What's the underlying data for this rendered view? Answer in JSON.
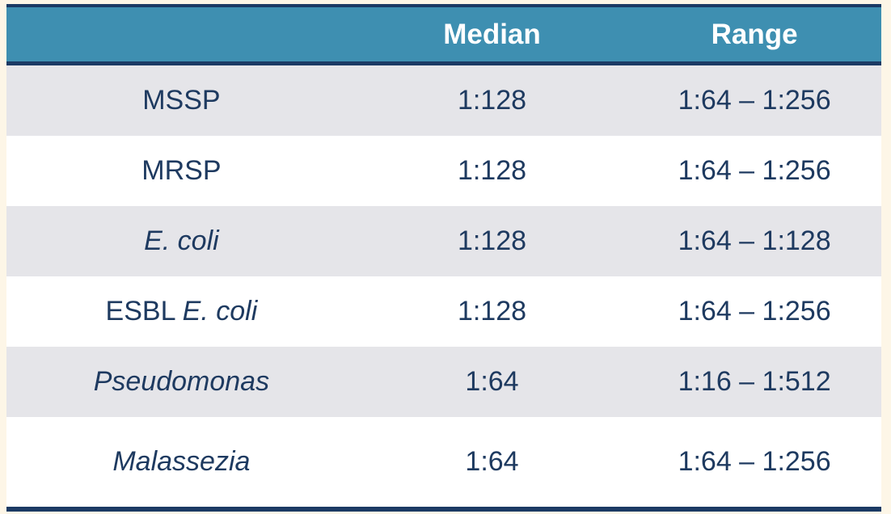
{
  "colors": {
    "page_bg": "#FDF6E7",
    "teal_header_bg": "#3E8FB1",
    "navy_border": "#1B3A64",
    "header_text": "#FFFFFF",
    "cell_text": "#1E3A60",
    "row_alt_bg": "#E5E5E9",
    "row_bg": "#FFFFFF"
  },
  "table": {
    "header": {
      "organism": "",
      "median": "Median",
      "range": "Range"
    },
    "rows": [
      {
        "organism_plain": "MSSP",
        "organism_italic": "",
        "median": "1:128",
        "range": "1:64 – 1:256"
      },
      {
        "organism_plain": "MRSP",
        "organism_italic": "",
        "median": "1:128",
        "range": "1:64 – 1:256"
      },
      {
        "organism_plain": "",
        "organism_italic": "E. coli",
        "median": "1:128",
        "range": "1:64 – 1:128"
      },
      {
        "organism_plain": "ESBL ",
        "organism_italic": "E. coli",
        "median": "1:128",
        "range": "1:64 – 1:256"
      },
      {
        "organism_plain": "",
        "organism_italic": "Pseudomonas",
        "median": "1:64",
        "range": "1:16 – 1:512"
      },
      {
        "organism_plain": "",
        "organism_italic": "Malassezia",
        "median": "1:64",
        "range": "1:64 – 1:256"
      }
    ]
  },
  "chart_data": {
    "type": "table",
    "title": "",
    "columns": [
      "",
      "Median",
      "Range"
    ],
    "rows": [
      [
        "MSSP",
        "1:128",
        "1:64 – 1:256"
      ],
      [
        "MRSP",
        "1:128",
        "1:64 – 1:256"
      ],
      [
        "E. coli",
        "1:128",
        "1:64 – 1:128"
      ],
      [
        "ESBL E. coli",
        "1:128",
        "1:64 – 1:256"
      ],
      [
        "Pseudomonas",
        "1:64",
        "1:16 – 1:512"
      ],
      [
        "Malassezia",
        "1:64",
        "1:64 – 1:256"
      ]
    ],
    "layout_hints": {
      "header_style": "teal background, white bold text",
      "row_striping": "odd rows light gray, even rows white",
      "italic_labels": [
        "E. coli",
        "ESBL E. coli (E. coli part)",
        "Pseudomonas",
        "Malassezia"
      ],
      "borders": "thick navy line above header, below header, and at table bottom"
    }
  }
}
